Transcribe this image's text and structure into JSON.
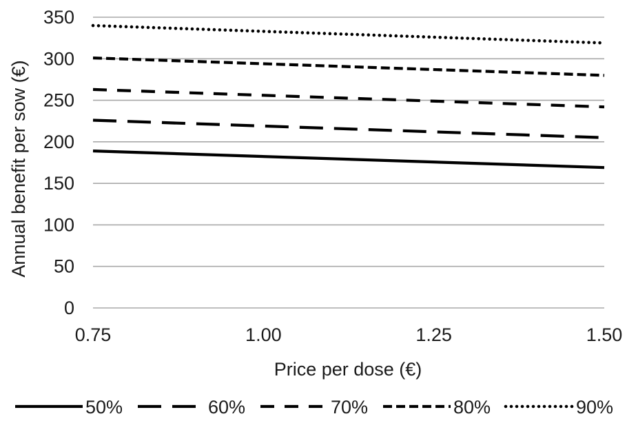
{
  "chart_data": {
    "type": "line",
    "title": "",
    "xlabel": "Price per dose (€)",
    "ylabel": "Annual benefit per sow (€)",
    "x": [
      0.75,
      1.5
    ],
    "x_ticks": [
      "0.75",
      "1.00",
      "1.25",
      "1.50"
    ],
    "x_tick_values": [
      0.75,
      1.0,
      1.25,
      1.5
    ],
    "xlim": [
      0.75,
      1.5
    ],
    "ylim": [
      0,
      350
    ],
    "y_ticks": [
      0,
      50,
      100,
      150,
      200,
      250,
      300,
      350
    ],
    "grid": "horizontal",
    "legend_position": "bottom",
    "series": [
      {
        "name": "50%",
        "values": [
          189,
          169
        ],
        "style": "solid",
        "color": "#000000"
      },
      {
        "name": "60%",
        "values": [
          226,
          205
        ],
        "style": "long-dash",
        "color": "#000000"
      },
      {
        "name": "70%",
        "values": [
          263,
          242
        ],
        "style": "dash",
        "color": "#000000"
      },
      {
        "name": "80%",
        "values": [
          301,
          280
        ],
        "style": "short-dash",
        "color": "#000000"
      },
      {
        "name": "90%",
        "values": [
          340,
          319
        ],
        "style": "dot",
        "color": "#000000"
      }
    ]
  }
}
